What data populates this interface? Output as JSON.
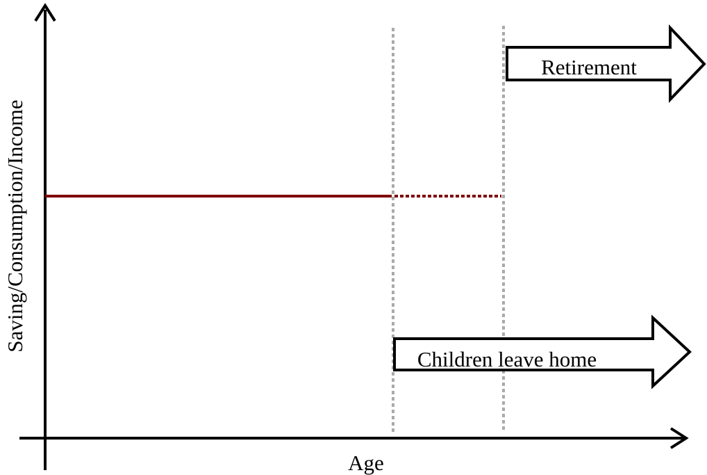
{
  "y_axis_label": "Saving/Consumption/Income",
  "x_axis_label": "Age",
  "arrows": [
    {
      "label": "Retirement"
    },
    {
      "label": "Children leave home"
    }
  ]
}
